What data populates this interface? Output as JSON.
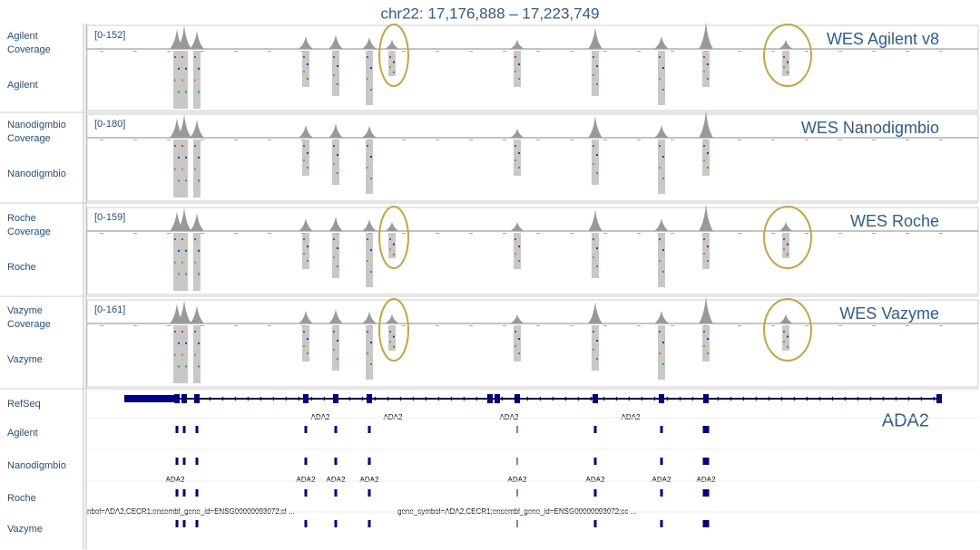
{
  "title": "chr22: 17,176,888 – 17,223,749",
  "panels": [
    {
      "coverage_label": "Agilent Coverage",
      "track_label": "Agilent",
      "range": "[0-152]",
      "annotation": "WES Agilent v8"
    },
    {
      "coverage_label": "Nanodigmbio Coverage",
      "track_label": "Nanodigmbio",
      "range": "[0-180]",
      "annotation": "WES Nanodigmbio"
    },
    {
      "coverage_label": "Roche Coverage",
      "track_label": "Roche",
      "range": "[0-159]",
      "annotation": "WES Roche"
    },
    {
      "coverage_label": "Vazyme Coverage",
      "track_label": "Vazyme",
      "range": "[0-161]",
      "annotation": "WES Vazyme"
    }
  ],
  "gene_panel": {
    "tracks": [
      "RefSeq",
      "Agilent",
      "Nanodigmbio",
      "Roche",
      "Vazyme"
    ],
    "refseq_labels": [
      "ADA2",
      "ADA2",
      "ADA2",
      "ADA2"
    ],
    "exon_labels": [
      "ADA2",
      "ADA2",
      "ADA2",
      "ADA2",
      "ADA2",
      "ADA2",
      "ADA2",
      "ADA2"
    ],
    "feature_text": [
      "nbol=ADA2,CECR1;ensembl_gene_id=ENSG00000093072;cl ...",
      "gene_symbol=ADA2,CECR1;ensembl_gene_id=ENSG00000093072;cc ..."
    ],
    "annotation": "ADA2"
  }
}
